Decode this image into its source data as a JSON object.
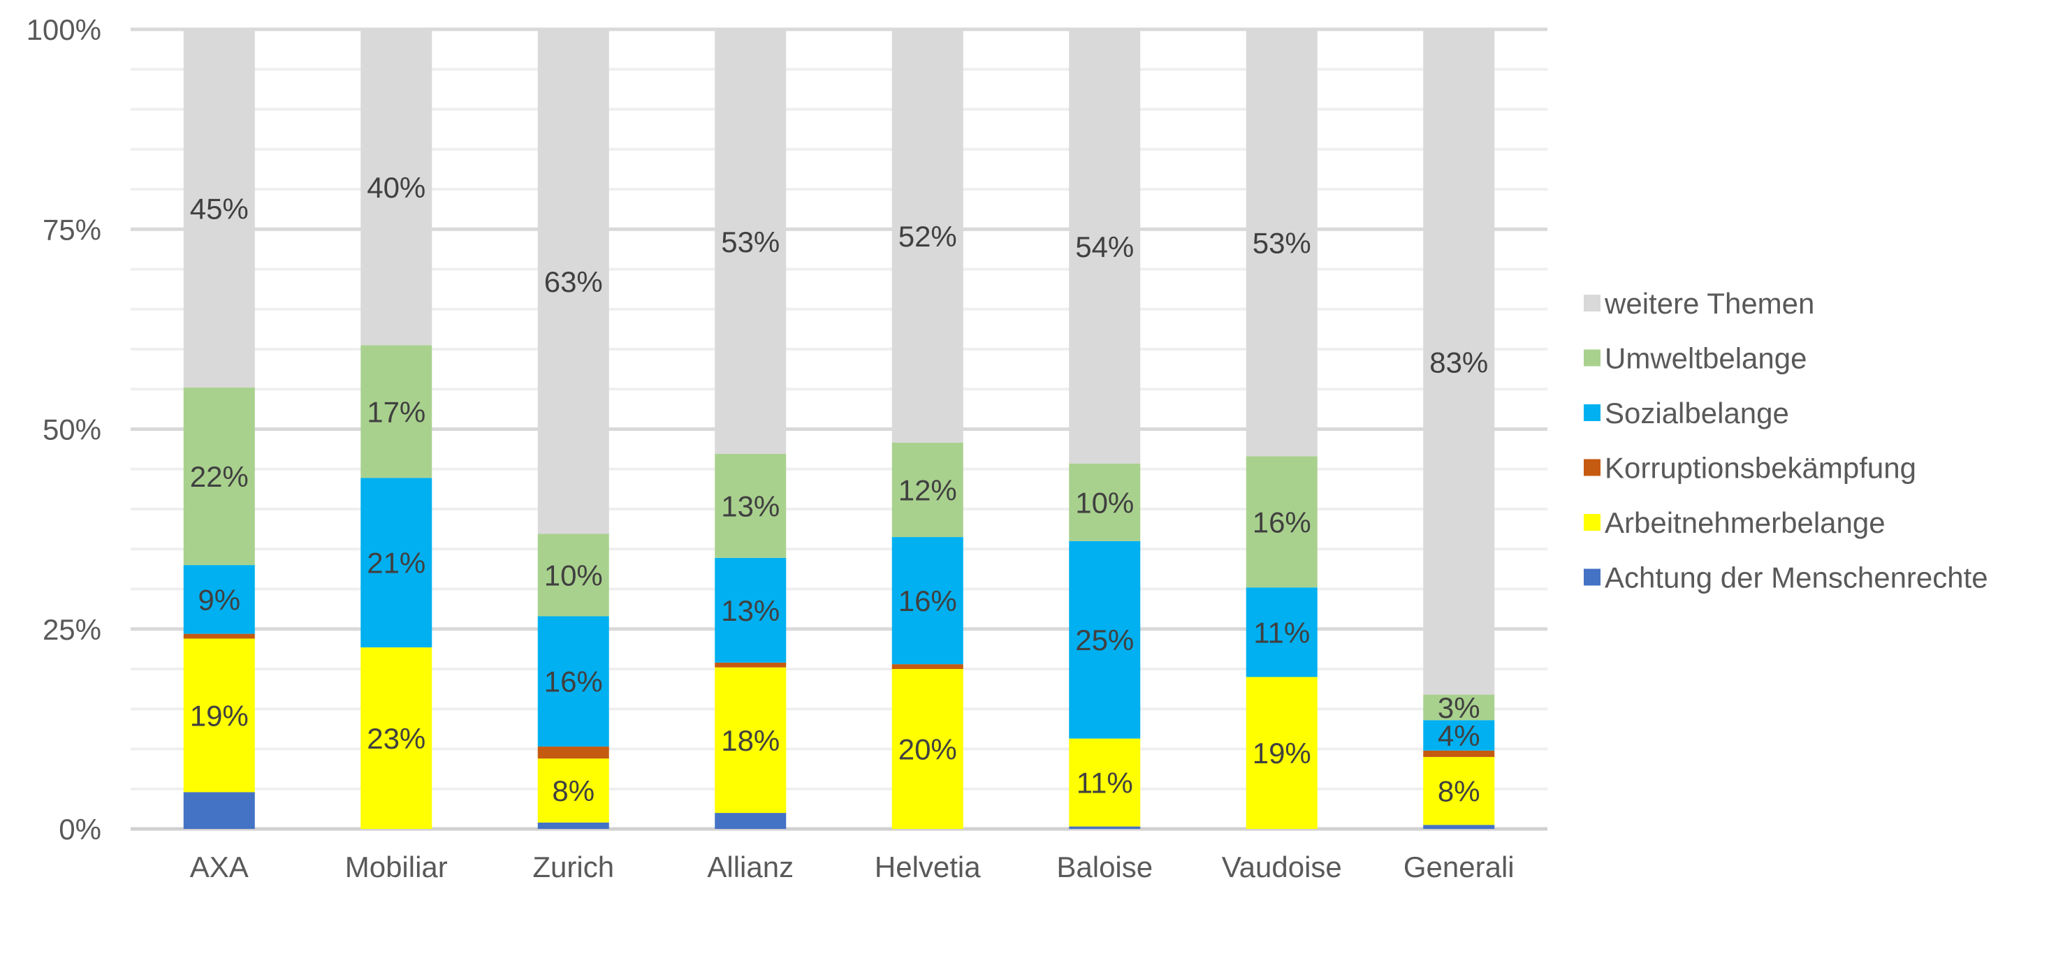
{
  "chart_data": {
    "type": "bar",
    "stacked": true,
    "percent_stacked": true,
    "title": "",
    "xlabel": "",
    "ylabel": "",
    "ylim": [
      0,
      100
    ],
    "y_ticks": [
      "0%",
      "25%",
      "50%",
      "75%",
      "100%"
    ],
    "grid": true,
    "legend_position": "right",
    "categories": [
      "AXA",
      "Mobiliar",
      "Zurich",
      "Allianz",
      "Helvetia",
      "Baloise",
      "Vaudoise",
      "Generali"
    ],
    "series": [
      {
        "name": "Achtung der Menschenrechte",
        "color": "#4472C4",
        "values": [
          4.6,
          0,
          0.8,
          2.0,
          0,
          0.3,
          0,
          0.5
        ],
        "labels": [
          "",
          "",
          "",
          "",
          "",
          "",
          "",
          ""
        ]
      },
      {
        "name": "Arbeitnehmerbelange",
        "color": "#FFFF00",
        "values": [
          19.2,
          22.7,
          8.0,
          18.2,
          20.0,
          11.0,
          19.0,
          8.5
        ],
        "labels": [
          "19%",
          "23%",
          "8%",
          "18%",
          "20%",
          "11%",
          "19%",
          "8%"
        ]
      },
      {
        "name": "Korruptionsbekämpfung",
        "color": "#C55A11",
        "values": [
          0.6,
          0,
          1.5,
          0.6,
          0.6,
          0,
          0,
          0.8
        ],
        "labels": [
          "",
          "",
          "",
          "",
          "",
          "",
          "",
          ""
        ]
      },
      {
        "name": "Sozialbelange",
        "color": "#00B0F0",
        "values": [
          8.6,
          21.2,
          16.3,
          13.1,
          15.9,
          24.7,
          11.2,
          3.8
        ],
        "labels": [
          "9%",
          "21%",
          "16%",
          "13%",
          "16%",
          "25%",
          "11%",
          "4%"
        ]
      },
      {
        "name": "Umweltbelange",
        "color": "#A9D18E",
        "values": [
          22.2,
          16.6,
          10.3,
          13.0,
          11.8,
          9.7,
          16.4,
          3.2
        ],
        "labels": [
          "22%",
          "17%",
          "10%",
          "13%",
          "12%",
          "10%",
          "16%",
          "3%"
        ]
      },
      {
        "name": "weitere Themen",
        "color": "#D9D9D9",
        "values": [
          44.8,
          39.5,
          63.1,
          53.1,
          51.7,
          54.3,
          53.4,
          83.2
        ],
        "labels": [
          "45%",
          "40%",
          "63%",
          "53%",
          "52%",
          "54%",
          "53%",
          "83%"
        ]
      }
    ],
    "legend_order": [
      "weitere Themen",
      "Umweltbelange",
      "Sozialbelange",
      "Korruptionsbekämpfung",
      "Arbeitnehmerbelange",
      "Achtung der Menschenrechte"
    ]
  }
}
